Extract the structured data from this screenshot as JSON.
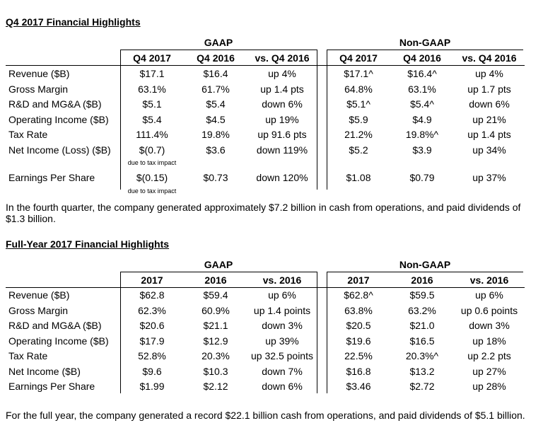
{
  "q4": {
    "title": "Q4 2017 Financial Highlights",
    "gaap_label": "GAAP",
    "nongaap_label": "Non-GAAP",
    "gaap_headers": [
      "Q4 2017",
      "Q4 2016",
      "vs. Q4 2016"
    ],
    "nongaap_headers": [
      "Q4 2017",
      "Q4 2016",
      "vs. Q4 2016"
    ],
    "rows": [
      {
        "label": "Revenue ($B)",
        "g": [
          "$17.1",
          "$16.4",
          "up 4%"
        ],
        "n": [
          "$17.1^",
          "$16.4^",
          "up 4%"
        ]
      },
      {
        "label": "Gross Margin",
        "g": [
          "63.1%",
          "61.7%",
          "up 1.4 pts"
        ],
        "n": [
          "64.8%",
          "63.1%",
          "up 1.7 pts"
        ]
      },
      {
        "label": "R&D and MG&A ($B)",
        "g": [
          "$5.1",
          "$5.4",
          "down 6%"
        ],
        "n": [
          "$5.1^",
          "$5.4^",
          "down 6%"
        ]
      },
      {
        "label": "Operating Income ($B)",
        "g": [
          "$5.4",
          "$4.5",
          "up 19%"
        ],
        "n": [
          "$5.9",
          "$4.9",
          "up 21%"
        ]
      },
      {
        "label": "Tax Rate",
        "g": [
          "111.4%",
          "19.8%",
          "up 91.6 pts"
        ],
        "n": [
          "21.2%",
          "19.8%^",
          "up 1.4 pts"
        ]
      },
      {
        "label": "Net Income (Loss) ($B)",
        "g": [
          "$(0.7)",
          "$3.6",
          "down 119%"
        ],
        "n": [
          "$5.2",
          "$3.9",
          "up 34%"
        ]
      },
      {
        "label": "Earnings Per Share",
        "g": [
          "$(0.15)",
          "$0.73",
          "down 120%"
        ],
        "n": [
          "$1.08",
          "$0.79",
          "up 37%"
        ]
      }
    ],
    "note_net_income": "due to tax impact",
    "note_eps": "due to tax impact",
    "paragraph": "In the fourth quarter, the company generated approximately $7.2 billion in cash from operations, and paid dividends of $1.3 billion."
  },
  "fy": {
    "title": "Full-Year 2017 Financial Highlights",
    "gaap_label": "GAAP",
    "nongaap_label": "Non-GAAP",
    "gaap_headers": [
      "2017",
      "2016",
      "vs. 2016"
    ],
    "nongaap_headers": [
      "2017",
      "2016",
      "vs. 2016"
    ],
    "rows": [
      {
        "label": "Revenue ($B)",
        "g": [
          "$62.8",
          "$59.4",
          "up 6%"
        ],
        "n": [
          "$62.8^",
          "$59.5",
          "up 6%"
        ]
      },
      {
        "label": "Gross Margin",
        "g": [
          "62.3%",
          "60.9%",
          "up 1.4 points"
        ],
        "n": [
          "63.8%",
          "63.2%",
          "up 0.6 points"
        ]
      },
      {
        "label": "R&D and MG&A ($B)",
        "g": [
          "$20.6",
          "$21.1",
          "down 3%"
        ],
        "n": [
          "$20.5",
          "$21.0",
          "down 3%"
        ]
      },
      {
        "label": "Operating Income ($B)",
        "g": [
          "$17.9",
          "$12.9",
          "up 39%"
        ],
        "n": [
          "$19.6",
          "$16.5",
          "up 18%"
        ]
      },
      {
        "label": "Tax Rate",
        "g": [
          "52.8%",
          "20.3%",
          "up 32.5 points"
        ],
        "n": [
          "22.5%",
          "20.3%^",
          "up 2.2 pts"
        ]
      },
      {
        "label": "Net Income ($B)",
        "g": [
          "$9.6",
          "$10.3",
          "down 7%"
        ],
        "n": [
          "$16.8",
          "$13.2",
          "up 27%"
        ]
      },
      {
        "label": "Earnings Per Share",
        "g": [
          "$1.99",
          "$2.12",
          "down 6%"
        ],
        "n": [
          "$3.46",
          "$2.72",
          "up 28%"
        ]
      }
    ],
    "paragraph": "For the full year, the company generated a record $22.1 billion cash from operations, and paid dividends of $5.1 billion."
  }
}
